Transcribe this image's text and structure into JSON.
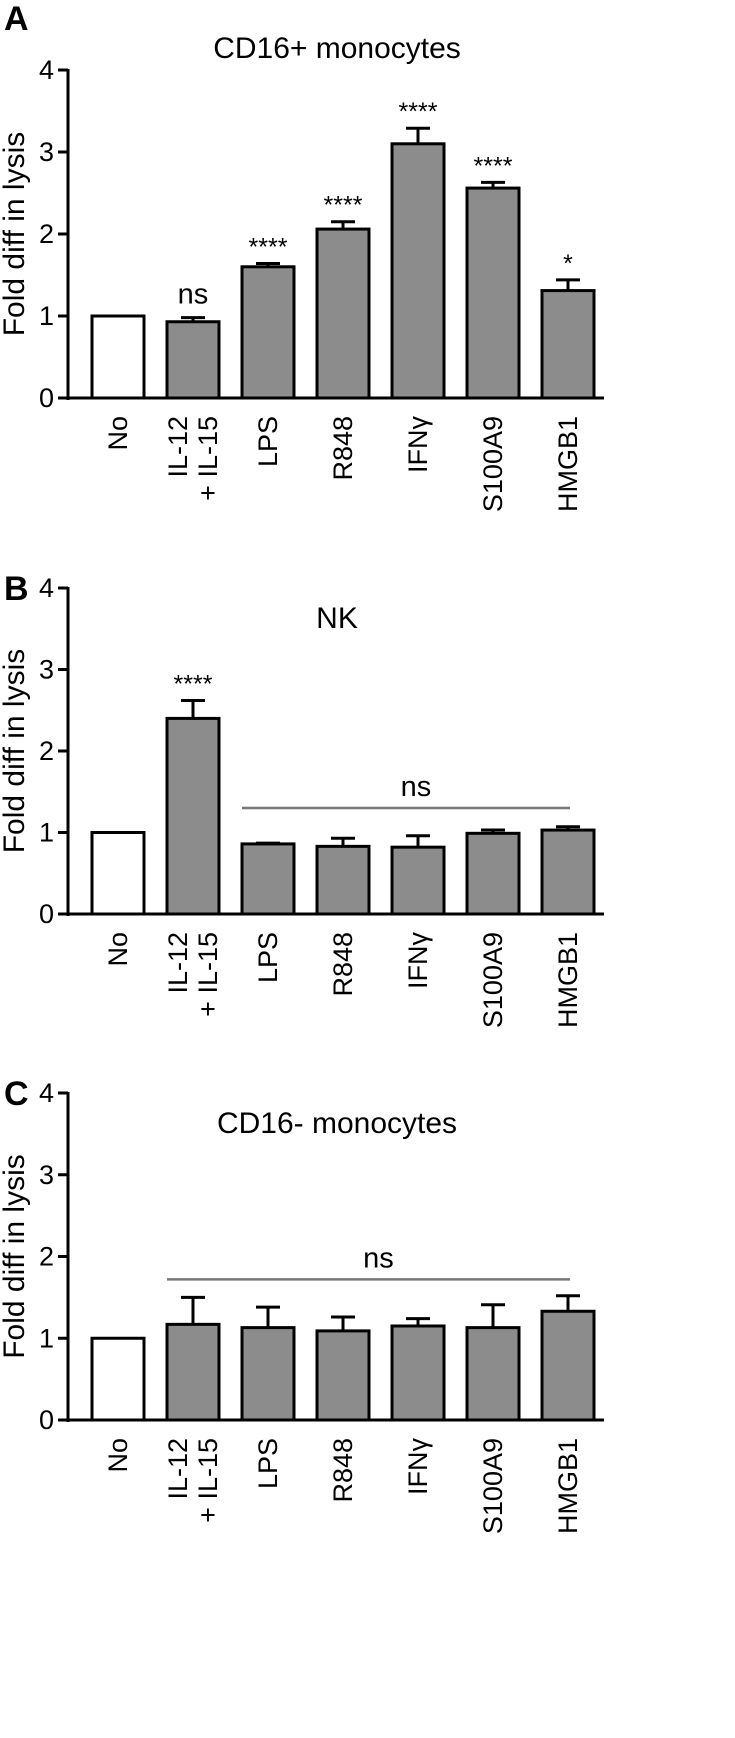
{
  "colors": {
    "filled_bar": "#8c8c8c",
    "open_bar": "#ffffff",
    "axis": "#000000",
    "ns_line": "#777777"
  },
  "chart_data": [
    {
      "type": "bar",
      "panel": "A",
      "title": "CD16+ monocytes",
      "ylabel": "Fold diff in lysis",
      "ylim": [
        0,
        4
      ],
      "yticks": [
        "0",
        "1",
        "2",
        "3",
        "4"
      ],
      "categories": [
        [
          "No"
        ],
        [
          "IL-12",
          "+ IL-15"
        ],
        [
          "LPS"
        ],
        [
          "R848"
        ],
        [
          "IFNγ"
        ],
        [
          "S100A9"
        ],
        [
          "HMGB1"
        ]
      ],
      "values": [
        1.0,
        0.93,
        1.6,
        2.06,
        3.1,
        2.56,
        1.31
      ],
      "errors": [
        0,
        0.05,
        0.04,
        0.09,
        0.19,
        0.07,
        0.13
      ],
      "significance": [
        "",
        "ns",
        "****",
        "****",
        "****",
        "****",
        "*"
      ],
      "group_label": null
    },
    {
      "type": "bar",
      "panel": "B",
      "title": "NK",
      "ylabel": "Fold diff in lysis",
      "ylim": [
        0,
        4
      ],
      "yticks": [
        "0",
        "1",
        "2",
        "3",
        "4"
      ],
      "categories": [
        [
          "No"
        ],
        [
          "IL-12",
          "+ IL-15"
        ],
        [
          "LPS"
        ],
        [
          "R848"
        ],
        [
          "IFNγ"
        ],
        [
          "S100A9"
        ],
        [
          "HMGB1"
        ]
      ],
      "values": [
        1.0,
        2.4,
        0.86,
        0.83,
        0.82,
        0.99,
        1.03
      ],
      "errors": [
        0,
        0.22,
        0.01,
        0.1,
        0.14,
        0.04,
        0.04
      ],
      "significance": [
        "",
        "****",
        "",
        "",
        "",
        "",
        ""
      ],
      "group_label": {
        "text": "ns",
        "from": 2,
        "to": 6,
        "y": 1.3
      }
    },
    {
      "type": "bar",
      "panel": "C",
      "title": "CD16- monocytes",
      "ylabel": "Fold diff in lysis",
      "ylim": [
        0,
        4
      ],
      "yticks": [
        "0",
        "1",
        "2",
        "3",
        "4"
      ],
      "categories": [
        [
          "No"
        ],
        [
          "IL-12",
          "+ IL-15"
        ],
        [
          "LPS"
        ],
        [
          "R848"
        ],
        [
          "IFNγ"
        ],
        [
          "S100A9"
        ],
        [
          "HMGB1"
        ]
      ],
      "values": [
        1.0,
        1.17,
        1.13,
        1.09,
        1.15,
        1.13,
        1.33
      ],
      "errors": [
        0,
        0.33,
        0.25,
        0.17,
        0.09,
        0.28,
        0.19
      ],
      "significance": [
        "",
        "",
        "",
        "",
        "",
        "",
        ""
      ],
      "group_label": {
        "text": "ns",
        "from": 1,
        "to": 6,
        "y": 1.72
      }
    }
  ]
}
